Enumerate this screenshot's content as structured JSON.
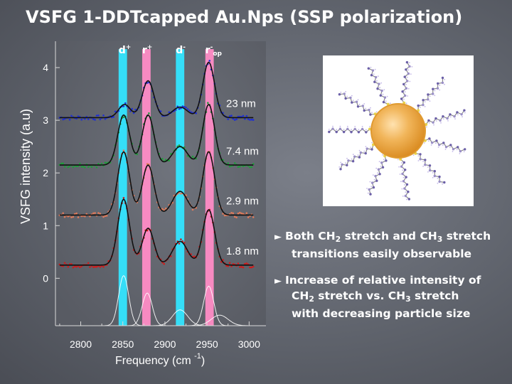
{
  "slide": {
    "title": "VSFG 1-DDTcapped Au.Nps (SSP polarization)"
  },
  "chart_data": {
    "type": "line",
    "xlabel": "Frequency (cm",
    "xlabel_sup": "-1",
    "xlabel_end": ")",
    "ylabel": "VSFG intensity (a.u)",
    "xlim": [
      2770,
      3020
    ],
    "ylim": [
      -0.9,
      4.5
    ],
    "x_ticks": [
      2800,
      2850,
      2900,
      2950,
      3000
    ],
    "y_ticks": [
      0,
      1,
      2,
      3,
      4
    ],
    "x_tick_labels": [
      "2800",
      "2850",
      "2900",
      "2950",
      "3000"
    ],
    "y_tick_labels": [
      "0",
      "1",
      "2",
      "3",
      "4"
    ],
    "bands": [
      {
        "name": "d+",
        "label_main": "d",
        "label_sup": "+",
        "center": 2850,
        "width": 10,
        "color": "#33e5ff"
      },
      {
        "name": "r+",
        "label_main": "r",
        "label_sup": "+",
        "center": 2878,
        "width": 10,
        "color": "#ff8cc6"
      },
      {
        "name": "d-",
        "label_main": "d",
        "label_sup": "-",
        "center": 2918,
        "width": 10,
        "color": "#33e5ff"
      },
      {
        "name": "r-op",
        "label_main": "r",
        "label_sup": "-",
        "label_sub": "op",
        "center": 2953,
        "width": 10,
        "color": "#ff8cc6"
      }
    ],
    "series": [
      {
        "name": "23 nm",
        "label": "23 nm",
        "color": "#1f2fd6",
        "offset": 3.0,
        "baseline": 0.05,
        "peaks": [
          [
            2852,
            0.25,
            7
          ],
          [
            2880,
            0.7,
            7
          ],
          [
            2918,
            0.2,
            9
          ],
          [
            2952,
            1.05,
            7
          ]
        ]
      },
      {
        "name": "7.4 nm",
        "label": "7.4 nm",
        "color": "#1e9e3a",
        "offset": 2.0,
        "baseline": 0.15,
        "peaks": [
          [
            2851,
            0.95,
            7
          ],
          [
            2880,
            0.95,
            7
          ],
          [
            2918,
            0.35,
            9
          ],
          [
            2952,
            1.15,
            7
          ]
        ]
      },
      {
        "name": "2.9 nm",
        "label": "2.9 nm",
        "color": "#e07a5a",
        "offset": 1.0,
        "baseline": 0.2,
        "peaks": [
          [
            2851,
            1.2,
            7
          ],
          [
            2880,
            0.95,
            7
          ],
          [
            2918,
            0.45,
            9
          ],
          [
            2952,
            1.2,
            7
          ]
        ]
      },
      {
        "name": "1.8 nm",
        "label": "1.8 nm",
        "color": "#d21a1a",
        "offset": 0.0,
        "baseline": 0.25,
        "peaks": [
          [
            2851,
            1.25,
            7
          ],
          [
            2880,
            0.7,
            7
          ],
          [
            2918,
            0.45,
            9
          ],
          [
            2952,
            1.05,
            7
          ]
        ]
      }
    ],
    "components": [
      {
        "center": 2851,
        "amp": 0.95,
        "width": 6
      },
      {
        "center": 2879,
        "amp": 0.62,
        "width": 6
      },
      {
        "center": 2918,
        "amp": 0.3,
        "width": 9
      },
      {
        "center": 2952,
        "amp": 0.75,
        "width": 6
      },
      {
        "center": 2965,
        "amp": 0.2,
        "width": 10
      }
    ],
    "component_baseline": -0.9,
    "grid": false,
    "legend": "inline-right"
  },
  "bullets": [
    {
      "line1_a": "Both CH",
      "line1_sub1": "2",
      "line1_b": " stretch and CH",
      "line1_sub2": "3",
      "line1_c": " stretch",
      "line2": "transitions easily observable"
    },
    {
      "line1": "Increase of relative intensity of",
      "line2_a": "CH",
      "line2_sub1": "2",
      "line2_b": " stretch vs. CH",
      "line2_sub2": "3",
      "line2_c": " stretch",
      "line3": "with decreasing particle size"
    }
  ],
  "colors": {
    "background": "#656972",
    "plot_background": "#5d6068",
    "axis": "#d9d9d9",
    "particle_gold": "#f2b04a"
  }
}
